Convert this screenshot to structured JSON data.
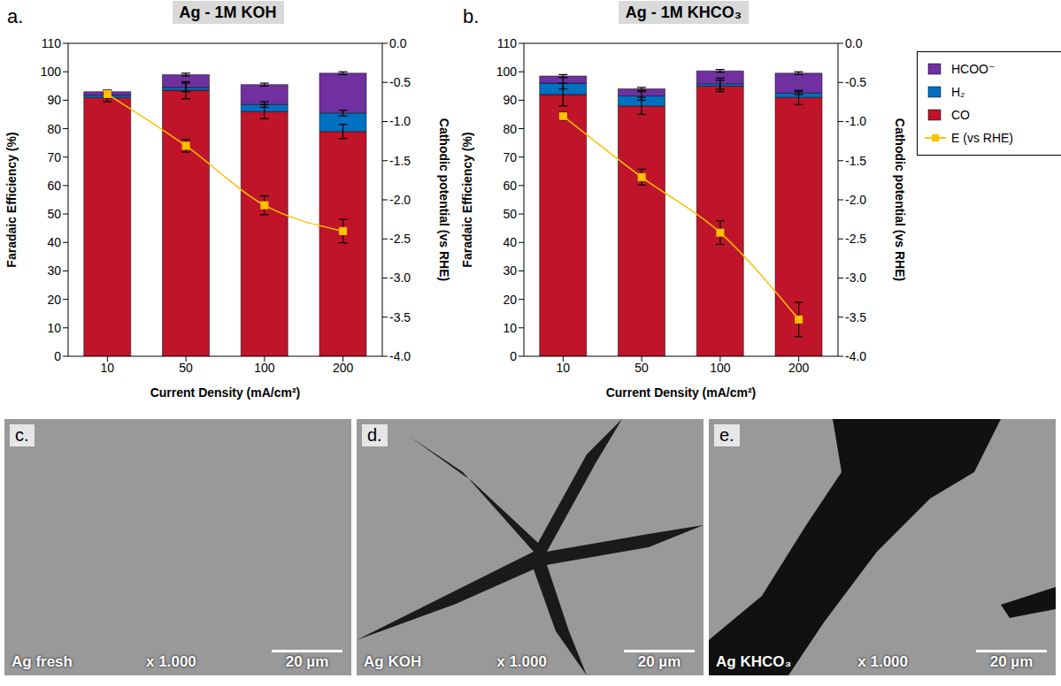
{
  "chart_data": [
    {
      "panel": "a.",
      "type": "bar",
      "title": "Ag - 1M KOH",
      "stacked": true,
      "x_label": "Current Density (mA/cm²)",
      "y_label": "Faradaic Efficiency  (%)",
      "y2_label": "Cathodic potential (vs RHE)",
      "categories": [
        "10",
        "50",
        "100",
        "200"
      ],
      "ylim": [
        0,
        110
      ],
      "yticks": [
        0,
        10,
        20,
        30,
        40,
        50,
        60,
        70,
        80,
        90,
        100,
        110
      ],
      "y2lim": [
        -4,
        0
      ],
      "y2ticks": [
        {
          "value": -4,
          "label": "-4.0"
        },
        -3.5,
        {
          "value": -3,
          "label": "-3.0"
        },
        -2.5,
        {
          "value": -2,
          "label": "-2.0"
        },
        -1.5,
        {
          "value": -1,
          "label": "-1.0"
        },
        -0.5,
        {
          "value": 0,
          "label": "0.0"
        }
      ],
      "series": [
        {
          "name": "CO",
          "color": "#c0142a",
          "values": [
            91,
            93.5,
            86,
            79
          ],
          "errors": [
            1.5,
            3,
            2.5,
            2.5
          ]
        },
        {
          "name": "H₂",
          "color": "#0070c0",
          "values": [
            0.8,
            1,
            2.5,
            6.5
          ],
          "errors": [
            0.5,
            1.5,
            1,
            1
          ]
        },
        {
          "name": "HCOO⁻",
          "color": "#7030a0",
          "values": [
            1.2,
            4.5,
            7,
            14
          ],
          "errors": [
            0.5,
            0.5,
            0.5,
            0.5
          ]
        },
        {
          "name": "E (vs RHE)",
          "type": "line",
          "axis": "y2",
          "color": "#ffc000",
          "marker": "square",
          "values": [
            -0.65,
            -1.31,
            -2.07,
            -2.4
          ],
          "errors": [
            0.05,
            0.08,
            0.12,
            0.15
          ]
        }
      ]
    },
    {
      "panel": "b.",
      "type": "bar",
      "title": "Ag - 1M KHCO₃",
      "stacked": true,
      "legend": "right",
      "x_label": "Current Density (mA/cm²)",
      "y_label": "Faradaic Efficiency  (%)",
      "y2_label": "Cathodic potential (vs RHE)",
      "categories": [
        "10",
        "50",
        "100",
        "200"
      ],
      "ylim": [
        0,
        110
      ],
      "yticks": [
        0,
        10,
        20,
        30,
        40,
        50,
        60,
        70,
        80,
        90,
        100,
        110
      ],
      "y2lim": [
        -4,
        0
      ],
      "y2ticks": [
        {
          "value": -4,
          "label": "-4.0"
        },
        -3.5,
        {
          "value": -3,
          "label": "-3.0"
        },
        -2.5,
        {
          "value": -2,
          "label": "-2.0"
        },
        -1.5,
        {
          "value": -1,
          "label": "-1.0"
        },
        -0.5,
        {
          "value": 0,
          "label": "0.0"
        }
      ],
      "series": [
        {
          "name": "CO",
          "color": "#c0142a",
          "values": [
            92,
            88,
            95,
            91
          ],
          "errors": [
            4,
            3,
            2,
            2.5
          ]
        },
        {
          "name": "H₂",
          "color": "#0070c0",
          "values": [
            4,
            3.5,
            0.8,
            1.5
          ],
          "errors": [
            2,
            1.5,
            2,
            0.5
          ]
        },
        {
          "name": "HCOO⁻",
          "color": "#7030a0",
          "values": [
            2.5,
            2.5,
            4.5,
            7
          ],
          "errors": [
            0.5,
            0.5,
            0.5,
            0.5
          ]
        },
        {
          "name": "E (vs RHE)",
          "type": "line",
          "axis": "y2",
          "color": "#ffc000",
          "marker": "square",
          "values": [
            -0.93,
            -1.71,
            -2.42,
            -3.53
          ],
          "errors": [
            0.05,
            0.1,
            0.15,
            0.22
          ]
        }
      ]
    }
  ],
  "images": [
    {
      "panel": "c.",
      "label": "Ag fresh",
      "magnification": "x 1.000",
      "scale_bar": "20 µm"
    },
    {
      "panel": "d.",
      "label": "Ag KOH",
      "magnification": "x 1.000",
      "scale_bar": "20 µm"
    },
    {
      "panel": "e.",
      "label": "Ag KHCO₃",
      "magnification": "x 1.000",
      "scale_bar": "20 µm"
    }
  ]
}
